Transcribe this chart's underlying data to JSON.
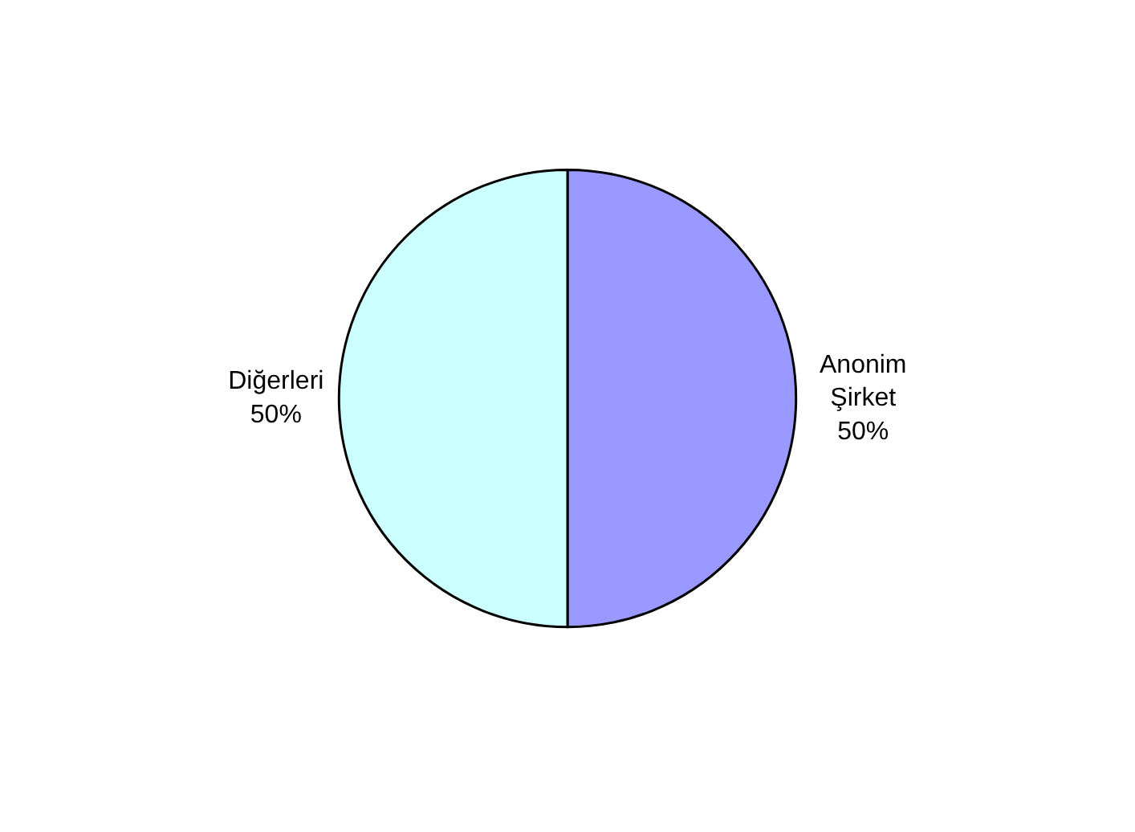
{
  "chart_data": {
    "type": "pie",
    "categories": [
      "Anonim Şirket",
      "Diğerleri"
    ],
    "values": [
      50,
      50
    ],
    "value_labels": [
      "50%",
      "50%"
    ],
    "colors": [
      "#9999ff",
      "#ccffff"
    ],
    "legend": false
  }
}
